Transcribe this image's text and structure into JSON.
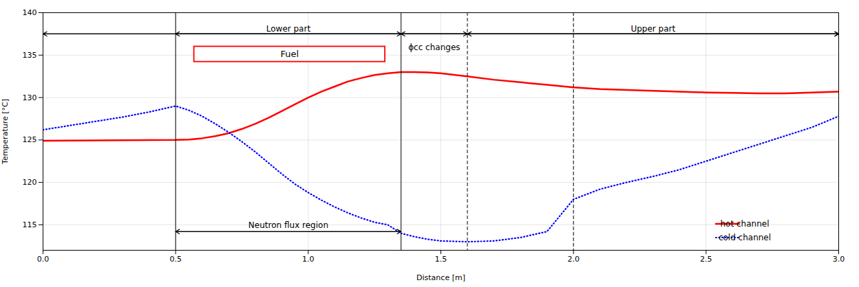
{
  "chart_data": {
    "type": "line",
    "xlabel": "Distance [m]",
    "ylabel": "Temperature [°C]",
    "xlim": [
      0,
      3
    ],
    "ylim": [
      112,
      140
    ],
    "xticks": [
      {
        "value": 0,
        "label": "0.0"
      },
      0.5,
      {
        "value": 1,
        "label": "1.0"
      },
      1.5,
      {
        "value": 2,
        "label": "2.0"
      },
      2.5,
      {
        "value": 3,
        "label": "3.0"
      }
    ],
    "yticks": [
      115,
      120,
      125,
      130,
      135,
      140
    ],
    "grid": true,
    "legend": "lower right",
    "series": [
      {
        "name": "hot channel",
        "color": "#ff0000",
        "line_style": "solid",
        "x": [
          0,
          0.5,
          0.55,
          0.6,
          0.65,
          0.7,
          0.75,
          0.8,
          0.85,
          0.9,
          0.95,
          1.0,
          1.05,
          1.1,
          1.15,
          1.2,
          1.25,
          1.3,
          1.35,
          1.4,
          1.45,
          1.5,
          1.6,
          1.7,
          1.8,
          1.9,
          2.0,
          2.1,
          2.2,
          2.3,
          2.4,
          2.5,
          2.6,
          2.7,
          2.8,
          2.9,
          3.0
        ],
        "values": [
          124.9,
          125.0,
          125.05,
          125.2,
          125.45,
          125.8,
          126.3,
          126.9,
          127.6,
          128.4,
          129.2,
          130.0,
          130.7,
          131.3,
          131.9,
          132.3,
          132.65,
          132.85,
          133.0,
          133.0,
          132.95,
          132.85,
          132.5,
          132.1,
          131.8,
          131.5,
          131.2,
          131.0,
          130.9,
          130.8,
          130.7,
          130.6,
          130.55,
          130.5,
          130.5,
          130.6,
          130.7
        ]
      },
      {
        "name": "cold channel",
        "color": "#0000ff",
        "line_style": "dotted",
        "x": [
          0,
          0.1,
          0.2,
          0.3,
          0.4,
          0.5,
          0.55,
          0.6,
          0.65,
          0.7,
          0.75,
          0.8,
          0.85,
          0.9,
          0.95,
          1.0,
          1.05,
          1.1,
          1.15,
          1.2,
          1.25,
          1.3,
          1.35,
          1.4,
          1.45,
          1.5,
          1.6,
          1.7,
          1.8,
          1.9,
          2.0,
          2.1,
          2.2,
          2.3,
          2.4,
          2.5,
          2.6,
          2.7,
          2.8,
          2.85,
          2.9,
          3.0
        ],
        "values": [
          126.2,
          126.7,
          127.2,
          127.7,
          128.3,
          129.0,
          128.5,
          127.8,
          126.9,
          125.9,
          124.8,
          123.6,
          122.3,
          121.0,
          119.8,
          118.8,
          117.9,
          117.1,
          116.4,
          115.8,
          115.3,
          115.0,
          114.0,
          113.6,
          113.3,
          113.1,
          113.0,
          113.1,
          113.5,
          114.2,
          118.0,
          119.2,
          120.0,
          120.7,
          121.5,
          122.5,
          123.5,
          124.5,
          125.5,
          126.0,
          126.5,
          127.8
        ]
      }
    ],
    "vlines": [
      {
        "x": 0.5,
        "line_style": "solid"
      },
      {
        "x": 1.35,
        "line_style": "solid"
      },
      {
        "x": 1.6,
        "line_style": "dashed"
      },
      {
        "x": 2.0,
        "line_style": "dashed"
      }
    ],
    "arrows": [
      {
        "x1": 0.0,
        "x2": 3.0,
        "y": 137.5
      },
      {
        "x1": 0.5,
        "x2": 1.35,
        "y": 137.5
      },
      {
        "x1": 1.6,
        "x2": 3.0,
        "y": 137.5
      },
      {
        "x1": 1.35,
        "x2": 1.6,
        "y": 137.5
      },
      {
        "x1": 0.5,
        "x2": 1.35,
        "y": 114.2
      }
    ],
    "annotations": [
      {
        "text": "Lower part",
        "x": 0.925,
        "y": 137.8
      },
      {
        "text": "Upper part",
        "x": 2.3,
        "y": 137.8
      },
      {
        "text": "ϕcc changes",
        "x": 1.475,
        "y": 136.3
      },
      {
        "text": "Neutron flux region",
        "x": 0.925,
        "y": 114.6
      }
    ],
    "box": {
      "text": "Fuel",
      "x1": 0.57,
      "x2": 1.29,
      "y1": 134.2,
      "y2": 136.0,
      "color": "#ff0000"
    }
  }
}
